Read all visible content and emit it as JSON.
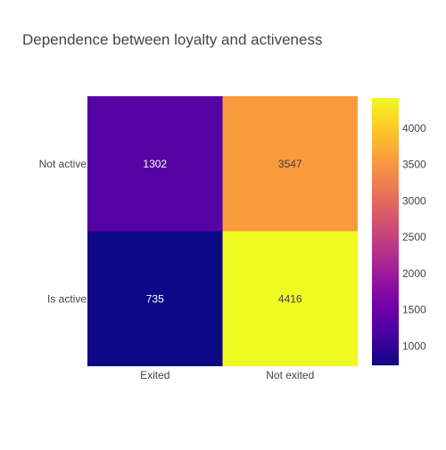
{
  "chart_data": {
    "type": "heatmap",
    "title": "Dependence between loyalty and activeness",
    "x_categories": [
      "Exited",
      "Not exited"
    ],
    "y_categories": [
      "Not active",
      "Is active"
    ],
    "z": [
      [
        1302,
        3547
      ],
      [
        735,
        4416
      ]
    ],
    "colorscale": "plasma",
    "zmin": 735,
    "zmax": 4416,
    "colorbar_ticks": [
      1000,
      1500,
      2000,
      2500,
      3000,
      3500,
      4000
    ],
    "colors": {
      "colorscale_stops": [
        "#0d0887",
        "#46039f",
        "#7201a8",
        "#9c179e",
        "#bd3786",
        "#d8576b",
        "#ed7953",
        "#fb9f3a",
        "#fdca26",
        "#f0f921"
      ]
    }
  }
}
